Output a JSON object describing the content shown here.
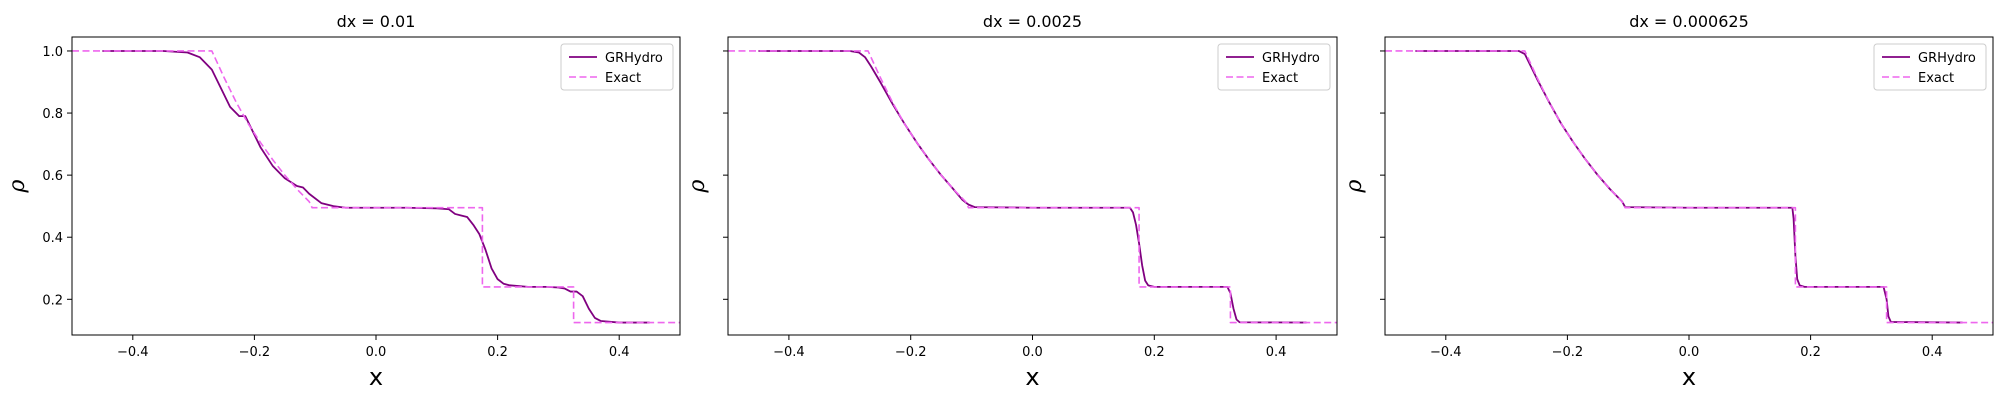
{
  "chart_data": [
    {
      "type": "line",
      "title": "dx = 0.01",
      "xlabel": "x",
      "ylabel": "ρ",
      "xlim": [
        -0.5,
        0.5
      ],
      "ylim": [
        0.085,
        1.045
      ],
      "xticks": [
        -0.4,
        -0.2,
        0.0,
        0.2,
        0.4
      ],
      "xtick_labels": [
        "−0.4",
        "−0.2",
        "0.0",
        "0.2",
        "0.4"
      ],
      "yticks": [
        0.2,
        0.4,
        0.6,
        0.8,
        1.0
      ],
      "ytick_labels": [
        "0.2",
        "0.4",
        "0.6",
        "0.8",
        "1.0"
      ],
      "legend_position": "top-right",
      "grid": false,
      "series": [
        {
          "name": "GRHydro",
          "style": "solid",
          "color": "#800080",
          "x": [
            -0.45,
            -0.35,
            -0.31,
            -0.29,
            -0.27,
            -0.255,
            -0.24,
            -0.225,
            -0.215,
            -0.205,
            -0.19,
            -0.17,
            -0.15,
            -0.13,
            -0.12,
            -0.11,
            -0.09,
            -0.07,
            -0.05,
            0.0,
            0.05,
            0.1,
            0.12,
            0.13,
            0.14,
            0.15,
            0.16,
            0.17,
            0.18,
            0.19,
            0.2,
            0.21,
            0.22,
            0.25,
            0.28,
            0.3,
            0.31,
            0.32,
            0.33,
            0.34,
            0.35,
            0.36,
            0.37,
            0.4,
            0.45
          ],
          "y": [
            1.0,
            1.0,
            0.995,
            0.98,
            0.94,
            0.88,
            0.82,
            0.79,
            0.79,
            0.75,
            0.69,
            0.63,
            0.59,
            0.565,
            0.56,
            0.54,
            0.51,
            0.5,
            0.495,
            0.495,
            0.495,
            0.493,
            0.49,
            0.475,
            0.47,
            0.465,
            0.44,
            0.41,
            0.36,
            0.3,
            0.265,
            0.25,
            0.245,
            0.24,
            0.24,
            0.238,
            0.235,
            0.225,
            0.225,
            0.21,
            0.17,
            0.14,
            0.13,
            0.125,
            0.125
          ]
        },
        {
          "name": "Exact",
          "style": "dashed",
          "color": "#ee66ee",
          "x": [
            -0.5,
            -0.27,
            -0.25,
            -0.23,
            -0.21,
            -0.19,
            -0.17,
            -0.15,
            -0.13,
            -0.11,
            -0.105,
            0.175,
            0.175,
            0.325,
            0.325,
            0.5
          ],
          "y": [
            1.0,
            1.0,
            0.915,
            0.835,
            0.765,
            0.705,
            0.65,
            0.6,
            0.555,
            0.515,
            0.495,
            0.495,
            0.24,
            0.24,
            0.125,
            0.125
          ]
        }
      ]
    },
    {
      "type": "line",
      "title": "dx = 0.0025",
      "xlabel": "x",
      "ylabel": "ρ",
      "xlim": [
        -0.5,
        0.5
      ],
      "ylim": [
        0.085,
        1.045
      ],
      "xticks": [
        -0.4,
        -0.2,
        0.0,
        0.2,
        0.4
      ],
      "xtick_labels": [
        "−0.4",
        "−0.2",
        "0.0",
        "0.2",
        "0.4"
      ],
      "yticks": [
        0.2,
        0.4,
        0.6,
        0.8,
        1.0
      ],
      "ytick_labels": [],
      "legend_position": "top-right",
      "grid": false,
      "series": [
        {
          "name": "GRHydro",
          "style": "solid",
          "color": "#800080",
          "x": [
            -0.45,
            -0.3,
            -0.285,
            -0.275,
            -0.265,
            -0.25,
            -0.23,
            -0.21,
            -0.19,
            -0.17,
            -0.15,
            -0.13,
            -0.115,
            -0.105,
            -0.095,
            0.0,
            0.16,
            0.165,
            0.17,
            0.175,
            0.18,
            0.185,
            0.19,
            0.2,
            0.32,
            0.325,
            0.33,
            0.335,
            0.34,
            0.45
          ],
          "y": [
            1.0,
            1.0,
            0.995,
            0.98,
            0.95,
            0.9,
            0.83,
            0.765,
            0.705,
            0.65,
            0.6,
            0.555,
            0.52,
            0.505,
            0.497,
            0.495,
            0.495,
            0.48,
            0.44,
            0.38,
            0.31,
            0.26,
            0.245,
            0.24,
            0.24,
            0.22,
            0.17,
            0.135,
            0.126,
            0.125
          ]
        },
        {
          "name": "Exact",
          "style": "dashed",
          "color": "#ee66ee",
          "x": [
            -0.5,
            -0.27,
            -0.25,
            -0.23,
            -0.21,
            -0.19,
            -0.17,
            -0.15,
            -0.13,
            -0.11,
            -0.105,
            0.175,
            0.175,
            0.325,
            0.325,
            0.5
          ],
          "y": [
            1.0,
            1.0,
            0.915,
            0.835,
            0.765,
            0.705,
            0.65,
            0.6,
            0.555,
            0.515,
            0.495,
            0.495,
            0.24,
            0.24,
            0.125,
            0.125
          ]
        }
      ]
    },
    {
      "type": "line",
      "title": "dx = 0.000625",
      "xlabel": "x",
      "ylabel": "ρ",
      "xlim": [
        -0.5,
        0.5
      ],
      "ylim": [
        0.085,
        1.045
      ],
      "xticks": [
        -0.4,
        -0.2,
        0.0,
        0.2,
        0.4
      ],
      "xtick_labels": [
        "−0.4",
        "−0.2",
        "0.0",
        "0.2",
        "0.4"
      ],
      "yticks": [
        0.2,
        0.4,
        0.6,
        0.8,
        1.0
      ],
      "ytick_labels": [],
      "legend_position": "top-right",
      "grid": false,
      "series": [
        {
          "name": "GRHydro",
          "style": "solid",
          "color": "#800080",
          "x": [
            -0.45,
            -0.28,
            -0.27,
            -0.26,
            -0.25,
            -0.23,
            -0.21,
            -0.19,
            -0.17,
            -0.15,
            -0.13,
            -0.11,
            -0.105,
            0.0,
            0.17,
            0.172,
            0.175,
            0.178,
            0.182,
            0.19,
            0.32,
            0.325,
            0.328,
            0.332,
            0.45
          ],
          "y": [
            1.0,
            1.0,
            0.99,
            0.95,
            0.91,
            0.835,
            0.765,
            0.705,
            0.65,
            0.6,
            0.555,
            0.515,
            0.497,
            0.495,
            0.495,
            0.46,
            0.34,
            0.265,
            0.245,
            0.24,
            0.24,
            0.2,
            0.145,
            0.127,
            0.125
          ]
        },
        {
          "name": "Exact",
          "style": "dashed",
          "color": "#ee66ee",
          "x": [
            -0.5,
            -0.27,
            -0.25,
            -0.23,
            -0.21,
            -0.19,
            -0.17,
            -0.15,
            -0.13,
            -0.11,
            -0.105,
            0.175,
            0.175,
            0.325,
            0.325,
            0.5
          ],
          "y": [
            1.0,
            1.0,
            0.915,
            0.835,
            0.765,
            0.705,
            0.65,
            0.6,
            0.555,
            0.515,
            0.495,
            0.495,
            0.24,
            0.24,
            0.125,
            0.125
          ]
        }
      ]
    }
  ]
}
